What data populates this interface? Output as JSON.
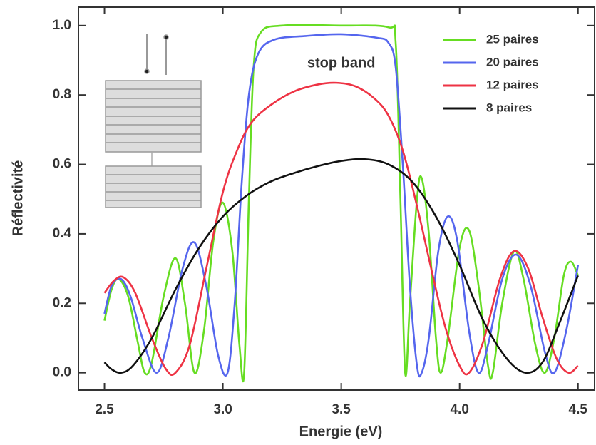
{
  "chart_data": {
    "type": "line",
    "xlabel": "Energie (eV)",
    "ylabel": "Réflectivité",
    "annotation": {
      "text": "stop band",
      "x": 3.5,
      "y": 0.89
    },
    "xlim": [
      2.39,
      4.57
    ],
    "ylim": [
      -0.05,
      1.053
    ],
    "xticks": [
      2.5,
      {
        "value": 3.0,
        "label": "3.0"
      },
      3.5,
      {
        "value": 4.0,
        "label": "4.0"
      },
      4.5
    ],
    "yticks": [
      {
        "value": 0,
        "label": "0.0"
      },
      {
        "value": 0.2,
        "label": "0.2"
      },
      {
        "value": 0.4,
        "label": "0.4"
      },
      {
        "value": 0.6,
        "label": "0.6"
      },
      {
        "value": 0.8,
        "label": "0.8"
      },
      {
        "value": 1.0,
        "label": "1.0"
      }
    ],
    "legend": "upper right",
    "series": [
      {
        "name": "25 paires",
        "color": "#66dd22",
        "x": [
          2.5,
          2.53,
          2.56,
          2.6,
          2.64,
          2.67,
          2.7,
          2.75,
          2.8,
          2.84,
          2.88,
          2.92,
          2.96,
          3.0,
          3.04,
          3.07,
          3.09,
          3.11,
          3.13,
          3.16,
          3.25,
          3.5,
          3.7,
          3.73,
          3.75,
          3.77,
          3.79,
          3.82,
          3.84,
          3.87,
          3.9,
          3.92,
          3.95,
          4.0,
          4.04,
          4.08,
          4.12,
          4.14,
          4.18,
          4.23,
          4.27,
          4.32,
          4.36,
          4.4,
          4.44,
          4.47,
          4.5
        ],
        "values": [
          0.15,
          0.24,
          0.27,
          0.22,
          0.09,
          0.0,
          0.03,
          0.22,
          0.33,
          0.2,
          0.0,
          0.12,
          0.38,
          0.49,
          0.35,
          0.08,
          0.0,
          0.5,
          0.88,
          0.98,
          1.0,
          1.0,
          0.995,
          0.95,
          0.5,
          0.0,
          0.2,
          0.5,
          0.56,
          0.4,
          0.1,
          0.0,
          0.1,
          0.36,
          0.41,
          0.25,
          0.02,
          0.0,
          0.2,
          0.35,
          0.27,
          0.08,
          0.0,
          0.1,
          0.28,
          0.32,
          0.28
        ]
      },
      {
        "name": "20 paires",
        "color": "#5566ee",
        "x": [
          2.5,
          2.53,
          2.57,
          2.61,
          2.66,
          2.72,
          2.77,
          2.83,
          2.88,
          2.93,
          2.98,
          3.02,
          3.05,
          3.08,
          3.11,
          3.15,
          3.22,
          3.35,
          3.5,
          3.65,
          3.7,
          3.73,
          3.76,
          3.79,
          3.82,
          3.84,
          3.87,
          3.91,
          3.95,
          3.99,
          4.04,
          4.08,
          4.12,
          4.18,
          4.24,
          4.3,
          4.36,
          4.4,
          4.45,
          4.5
        ],
        "values": [
          0.17,
          0.25,
          0.27,
          0.22,
          0.1,
          0.0,
          0.1,
          0.3,
          0.375,
          0.25,
          0.05,
          0.0,
          0.2,
          0.55,
          0.8,
          0.92,
          0.96,
          0.97,
          0.975,
          0.965,
          0.95,
          0.88,
          0.6,
          0.25,
          0.02,
          0.0,
          0.1,
          0.35,
          0.45,
          0.38,
          0.12,
          0.0,
          0.08,
          0.27,
          0.34,
          0.25,
          0.06,
          0.0,
          0.12,
          0.31
        ]
      },
      {
        "name": "12 paires",
        "color": "#ee3344",
        "x": [
          2.5,
          2.54,
          2.58,
          2.63,
          2.7,
          2.76,
          2.8,
          2.86,
          2.93,
          3.0,
          3.06,
          3.12,
          3.2,
          3.3,
          3.4,
          3.48,
          3.56,
          3.64,
          3.7,
          3.76,
          3.82,
          3.88,
          3.94,
          4.0,
          4.04,
          4.1,
          4.17,
          4.23,
          4.29,
          4.35,
          4.41,
          4.46,
          4.5
        ],
        "values": [
          0.23,
          0.265,
          0.275,
          0.23,
          0.1,
          0.01,
          0.0,
          0.08,
          0.3,
          0.52,
          0.64,
          0.72,
          0.77,
          0.81,
          0.83,
          0.835,
          0.825,
          0.79,
          0.74,
          0.64,
          0.48,
          0.3,
          0.13,
          0.02,
          0.0,
          0.09,
          0.27,
          0.35,
          0.3,
          0.16,
          0.04,
          0.0,
          0.02
        ]
      },
      {
        "name": "8 paires",
        "color": "#111111",
        "x": [
          2.5,
          2.53,
          2.57,
          2.62,
          2.7,
          2.8,
          2.9,
          3.0,
          3.1,
          3.2,
          3.3,
          3.4,
          3.5,
          3.6,
          3.7,
          3.8,
          3.9,
          4.0,
          4.1,
          4.2,
          4.28,
          4.35,
          4.42,
          4.5
        ],
        "values": [
          0.03,
          0.01,
          0.0,
          0.02,
          0.1,
          0.24,
          0.36,
          0.45,
          0.51,
          0.55,
          0.575,
          0.595,
          0.61,
          0.615,
          0.6,
          0.55,
          0.45,
          0.31,
          0.15,
          0.04,
          0.0,
          0.03,
          0.14,
          0.28
        ]
      }
    ]
  }
}
